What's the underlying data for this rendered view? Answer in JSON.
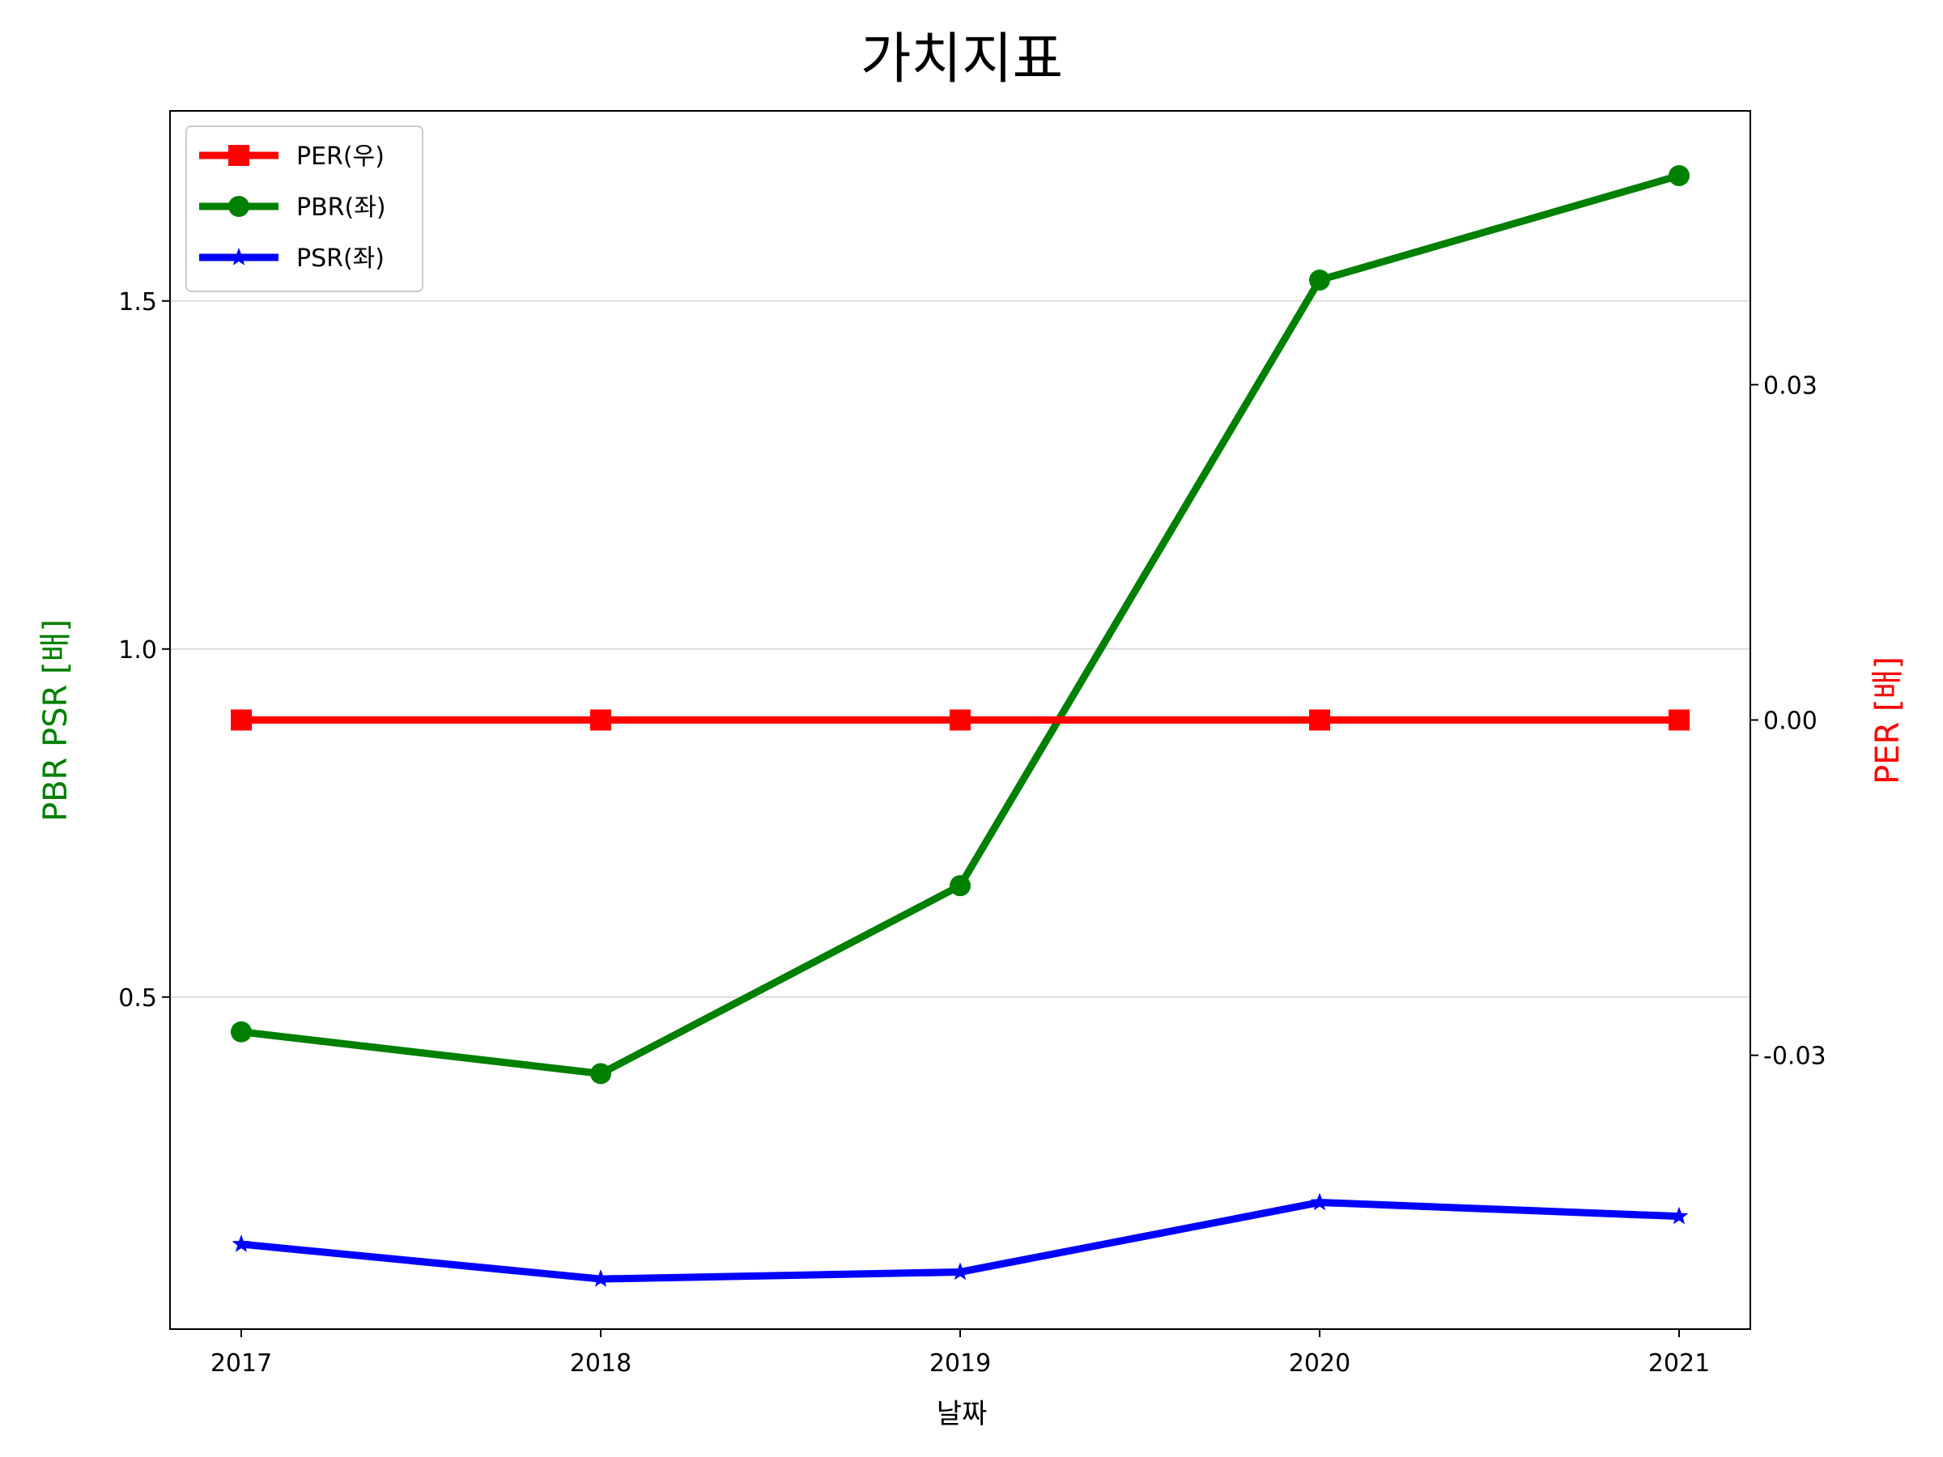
{
  "chart_data": {
    "type": "line",
    "title": "가치지표",
    "xlabel": "날짜",
    "ylabel_left": "PBR PSR [배]",
    "ylabel_right": "PER [배]",
    "x": [
      "2017",
      "2018",
      "2019",
      "2020",
      "2021"
    ],
    "ylim_left": [
      0.023,
      1.773
    ],
    "yticks_left": [
      "0.5",
      "1.0",
      "1.5"
    ],
    "ylim_right": [
      -0.0545,
      0.0545
    ],
    "yticks_right": [
      "-0.03",
      "0.00",
      "0.03"
    ],
    "grid": "horizontal, left axis",
    "legend_position": "upper-left",
    "series": [
      {
        "name": "PER(우)",
        "axis": "right",
        "marker": "square",
        "color": "#ff0000",
        "values": [
          0,
          0,
          0,
          0,
          0
        ]
      },
      {
        "name": "PBR(좌)",
        "axis": "left",
        "marker": "circle",
        "color": "#008000",
        "values": [
          0.45,
          0.39,
          0.66,
          1.53,
          1.68
        ]
      },
      {
        "name": "PSR(좌)",
        "axis": "left",
        "marker": "star",
        "color": "#0000ff",
        "values": [
          0.145,
          0.095,
          0.105,
          0.205,
          0.185
        ]
      }
    ]
  }
}
